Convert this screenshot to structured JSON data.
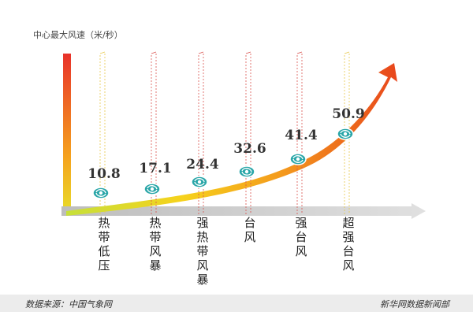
{
  "chart_data": {
    "type": "line",
    "ylabel": "中心最大风速（米/秒）",
    "categories": [
      "热带低压",
      "热带风暴",
      "强热带风暴",
      "台风",
      "强台风",
      "超强台风"
    ],
    "values": [
      10.8,
      17.1,
      24.4,
      32.6,
      41.4,
      50.9
    ],
    "value_labels": [
      "10.8",
      "17.1",
      "24.4",
      "32.6",
      "41.4",
      "50.9"
    ],
    "legend": "none",
    "grid": false,
    "colors": {
      "arrow_start": "#f7e11a",
      "arrow_mid": "#f6a21c",
      "arrow_end": "#e94e1b",
      "marker": "#2aa6a8",
      "guide": "#d9534f",
      "guide_alt": "#e7c84a"
    }
  },
  "footer": {
    "source": "数据来源：中国气象网",
    "credit": "新华网数据新闻部"
  }
}
